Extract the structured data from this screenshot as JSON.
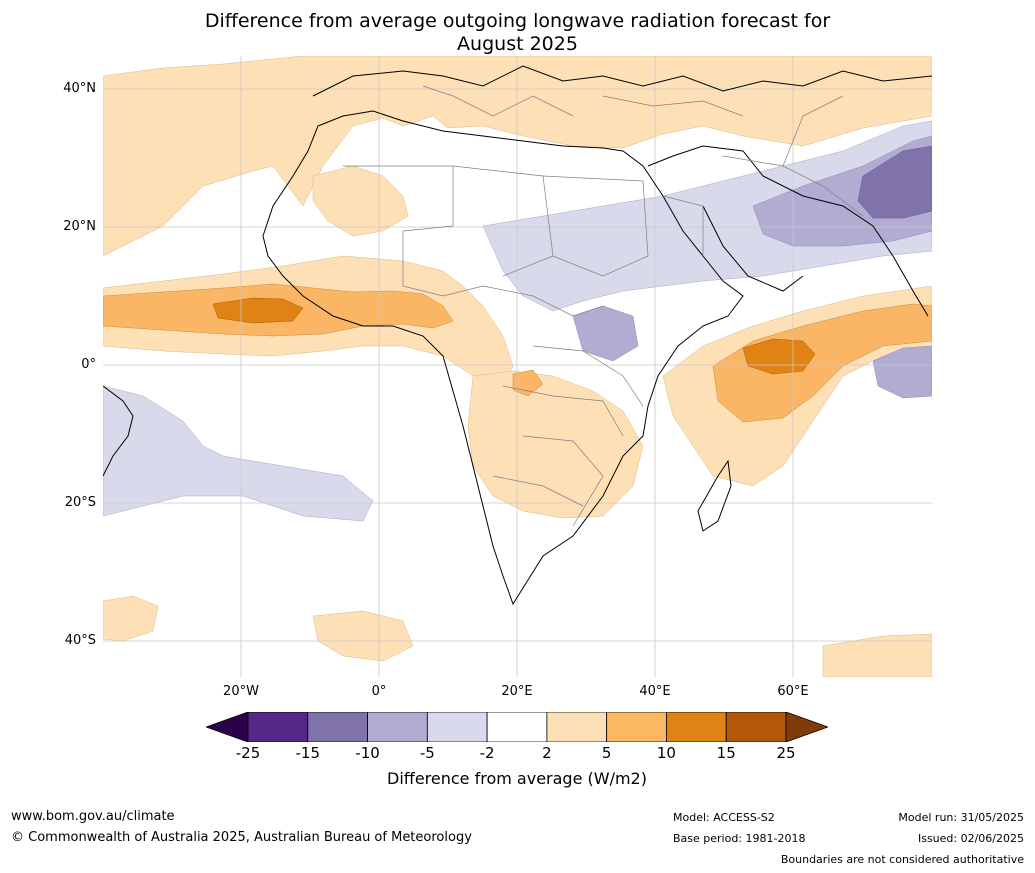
{
  "title_line1": "Difference from average outgoing longwave radiation forecast for",
  "title_line2": "August 2025",
  "map": {
    "lat_labels": [
      "40°N",
      "20°N",
      "0°",
      "20°S",
      "40°S"
    ],
    "lon_labels": [
      "20°W",
      "0°",
      "20°E",
      "40°E",
      "60°E"
    ],
    "colors": {
      "ocean_bg": "#ffffff",
      "light_orange": "#fde0b6",
      "mid_orange": "#fab565",
      "dark_orange": "#e08214",
      "light_purple": "#d8daeb",
      "mid_purple": "#b2abd2",
      "dark_purple": "#8073ac",
      "border": "#808080",
      "coast": "#000000"
    }
  },
  "colorbar": {
    "tick_labels": [
      "-25",
      "-15",
      "-10",
      "-5",
      "-2",
      "2",
      "5",
      "10",
      "15",
      "25"
    ],
    "segment_colors": [
      "#2d004b",
      "#542788",
      "#8073ac",
      "#b2abd2",
      "#d8daeb",
      "#ffffff",
      "#fee0b6",
      "#fdb863",
      "#e08214",
      "#b35806",
      "#7f3b08"
    ],
    "title": "Difference from average (W/m2)"
  },
  "footer": {
    "website": "www.bom.gov.au/climate",
    "copyright": "© Commonwealth of Australia 2025, Australian Bureau of Meteorology",
    "model": "Model: ACCESS-S2",
    "base_period": "Base period: 1981-2018",
    "model_run": "Model run: 31/05/2025",
    "issued": "Issued: 02/06/2025",
    "disclaimer": "Boundaries are not considered authoritative"
  }
}
